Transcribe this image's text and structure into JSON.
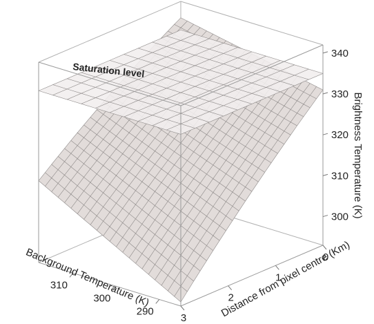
{
  "chart_data": {
    "type": "surface3d",
    "title": "",
    "annotation": "Saturation level",
    "x_axis": {
      "label": "Background Temperature (K)",
      "ticks": [
        "310",
        "300",
        "290"
      ],
      "range": [
        285,
        318
      ]
    },
    "y_axis": {
      "label": "Distance from pixel centre (Km)",
      "ticks": [
        "0",
        "1",
        "2",
        "3"
      ],
      "range": [
        0,
        3
      ]
    },
    "z_axis": {
      "label": "Brightness Temperature (K)",
      "ticks": [
        "300",
        "310",
        "320",
        "330",
        "340"
      ],
      "range": [
        293,
        342
      ]
    },
    "surface": {
      "description_values": "brightness temperature at grid corners",
      "corners": [
        {
          "background_K": 318,
          "distance_km": 3,
          "brightness_K": 313
        },
        {
          "background_K": 318,
          "distance_km": 0,
          "brightness_K": 338
        },
        {
          "background_K": 285,
          "distance_km": 3,
          "brightness_K": 294
        },
        {
          "background_K": 285,
          "distance_km": 0,
          "brightness_K": 331
        }
      ]
    },
    "saturation_plane": {
      "brightness_K": 335
    }
  }
}
